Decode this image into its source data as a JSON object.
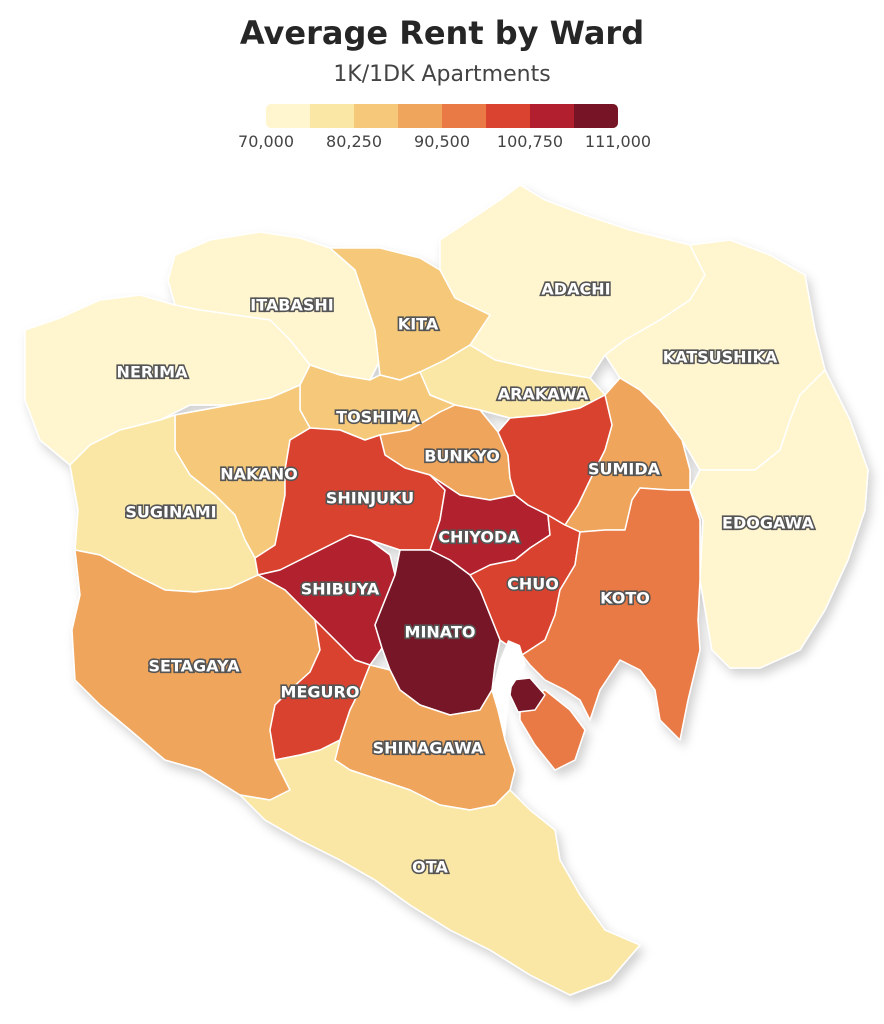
{
  "title": "Average Rent by Ward",
  "subtitle": "1K/1DK Apartments",
  "legend": {
    "colors": [
      "#fff5cf",
      "#fae7a6",
      "#f5c979",
      "#efa55b",
      "#ea7a45",
      "#d9432f",
      "#b2202f",
      "#771426"
    ],
    "ticks": [
      "70,000",
      "80,250",
      "90,500",
      "100,750",
      "111,000"
    ]
  },
  "wards": [
    {
      "name": "ADACHI",
      "bin": 0
    },
    {
      "name": "KATSUSHIKA",
      "bin": 0
    },
    {
      "name": "EDOGAWA",
      "bin": 0
    },
    {
      "name": "ITABASHI",
      "bin": 0
    },
    {
      "name": "NERIMA",
      "bin": 0
    },
    {
      "name": "KITA",
      "bin": 2
    },
    {
      "name": "ARAKAWA",
      "bin": 1
    },
    {
      "name": "TOSHIMA",
      "bin": 2
    },
    {
      "name": "BUNKYO",
      "bin": 3
    },
    {
      "name": "NAKANO",
      "bin": 2
    },
    {
      "name": "SUGINAMI",
      "bin": 1
    },
    {
      "name": "SHINJUKU",
      "bin": 5
    },
    {
      "name": "SUMIDA",
      "bin": 3
    },
    {
      "name": "CHIYODA",
      "bin": 6
    },
    {
      "name": "CHUO",
      "bin": 5
    },
    {
      "name": "KOTO",
      "bin": 4
    },
    {
      "name": "SHIBUYA",
      "bin": 6
    },
    {
      "name": "MINATO",
      "bin": 7
    },
    {
      "name": "SETAGAYA",
      "bin": 3
    },
    {
      "name": "MEGURO",
      "bin": 5
    },
    {
      "name": "SHINAGAWA",
      "bin": 3
    },
    {
      "name": "OTA",
      "bin": 1
    }
  ]
}
